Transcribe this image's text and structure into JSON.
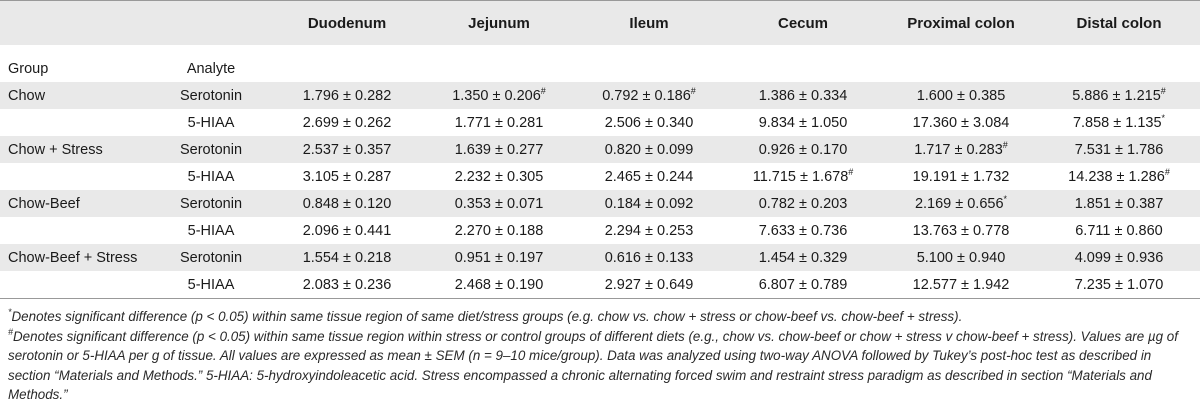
{
  "table": {
    "regions": [
      "Duodenum",
      "Jejunum",
      "Ileum",
      "Cecum",
      "Proximal colon",
      "Distal colon"
    ],
    "group_header": "Group",
    "analyte_header": "Analyte",
    "rows": [
      {
        "group": "Chow",
        "analyte": "Serotonin",
        "cells": [
          {
            "v": "1.796 ± 0.282",
            "s": ""
          },
          {
            "v": "1.350 ± 0.206",
            "s": "#"
          },
          {
            "v": "0.792 ± 0.186",
            "s": "#"
          },
          {
            "v": "1.386 ± 0.334",
            "s": ""
          },
          {
            "v": "1.600 ± 0.385",
            "s": ""
          },
          {
            "v": "5.886 ± 1.215",
            "s": "#"
          }
        ]
      },
      {
        "group": "",
        "analyte": "5-HIAA",
        "cells": [
          {
            "v": "2.699 ± 0.262",
            "s": ""
          },
          {
            "v": "1.771 ± 0.281",
            "s": ""
          },
          {
            "v": "2.506 ± 0.340",
            "s": ""
          },
          {
            "v": "9.834 ± 1.050",
            "s": ""
          },
          {
            "v": "17.360 ± 3.084",
            "s": ""
          },
          {
            "v": "7.858 ± 1.135",
            "s": "*"
          }
        ]
      },
      {
        "group": "Chow + Stress",
        "analyte": "Serotonin",
        "cells": [
          {
            "v": "2.537 ± 0.357",
            "s": ""
          },
          {
            "v": "1.639 ± 0.277",
            "s": ""
          },
          {
            "v": "0.820 ± 0.099",
            "s": ""
          },
          {
            "v": "0.926 ± 0.170",
            "s": ""
          },
          {
            "v": "1.717 ± 0.283",
            "s": "#"
          },
          {
            "v": "7.531 ± 1.786",
            "s": ""
          }
        ]
      },
      {
        "group": "",
        "analyte": "5-HIAA",
        "cells": [
          {
            "v": "3.105 ± 0.287",
            "s": ""
          },
          {
            "v": "2.232 ± 0.305",
            "s": ""
          },
          {
            "v": "2.465 ± 0.244",
            "s": ""
          },
          {
            "v": "11.715 ± 1.678",
            "s": "#"
          },
          {
            "v": "19.191 ± 1.732",
            "s": ""
          },
          {
            "v": "14.238 ± 1.286",
            "s": "#"
          }
        ]
      },
      {
        "group": "Chow-Beef",
        "analyte": "Serotonin",
        "cells": [
          {
            "v": "0.848 ± 0.120",
            "s": ""
          },
          {
            "v": "0.353 ± 0.071",
            "s": ""
          },
          {
            "v": "0.184 ± 0.092",
            "s": ""
          },
          {
            "v": "0.782 ± 0.203",
            "s": ""
          },
          {
            "v": "2.169 ± 0.656",
            "s": "*"
          },
          {
            "v": "1.851 ± 0.387",
            "s": ""
          }
        ]
      },
      {
        "group": "",
        "analyte": "5-HIAA",
        "cells": [
          {
            "v": "2.096 ± 0.441",
            "s": ""
          },
          {
            "v": "2.270 ± 0.188",
            "s": ""
          },
          {
            "v": "2.294 ± 0.253",
            "s": ""
          },
          {
            "v": "7.633 ± 0.736",
            "s": ""
          },
          {
            "v": "13.763 ± 0.778",
            "s": ""
          },
          {
            "v": "6.711 ± 0.860",
            "s": ""
          }
        ]
      },
      {
        "group": "Chow-Beef + Stress",
        "analyte": "Serotonin",
        "cells": [
          {
            "v": "1.554 ± 0.218",
            "s": ""
          },
          {
            "v": "0.951 ± 0.197",
            "s": ""
          },
          {
            "v": "0.616 ± 0.133",
            "s": ""
          },
          {
            "v": "1.454 ± 0.329",
            "s": ""
          },
          {
            "v": "5.100 ± 0.940",
            "s": ""
          },
          {
            "v": "4.099 ± 0.936",
            "s": ""
          }
        ]
      },
      {
        "group": "",
        "analyte": "5-HIAA",
        "cells": [
          {
            "v": "2.083 ± 0.236",
            "s": ""
          },
          {
            "v": "2.468 ± 0.190",
            "s": ""
          },
          {
            "v": "2.927 ± 0.649",
            "s": ""
          },
          {
            "v": "6.807 ± 0.789",
            "s": ""
          },
          {
            "v": "12.577 ± 1.942",
            "s": ""
          },
          {
            "v": "7.235 ± 1.070",
            "s": ""
          }
        ]
      }
    ]
  },
  "footnotes": {
    "star_symbol": "*",
    "star_text": "Denotes significant difference (p < 0.05) within same tissue region of same diet/stress groups (e.g. chow vs. chow + stress or chow-beef vs. chow-beef + stress).",
    "hash_symbol": "#",
    "hash_text": "Denotes significant difference (p < 0.05) within same tissue region within stress or control groups of different diets (e.g., chow vs. chow-beef or chow + stress v chow-beef + stress). Values are µg of serotonin or 5-HIAA per g of tissue. All values are expressed as mean ± SEM (n = 9–10 mice/group). Data was analyzed using two-way ANOVA followed by Tukey’s post-hoc test as described in section “Materials and Methods.” 5-HIAA: 5-hydroxyindoleacetic acid. Stress encompassed a chronic alternating forced swim and restraint stress paradigm as described in section “Materials and Methods.”"
  }
}
